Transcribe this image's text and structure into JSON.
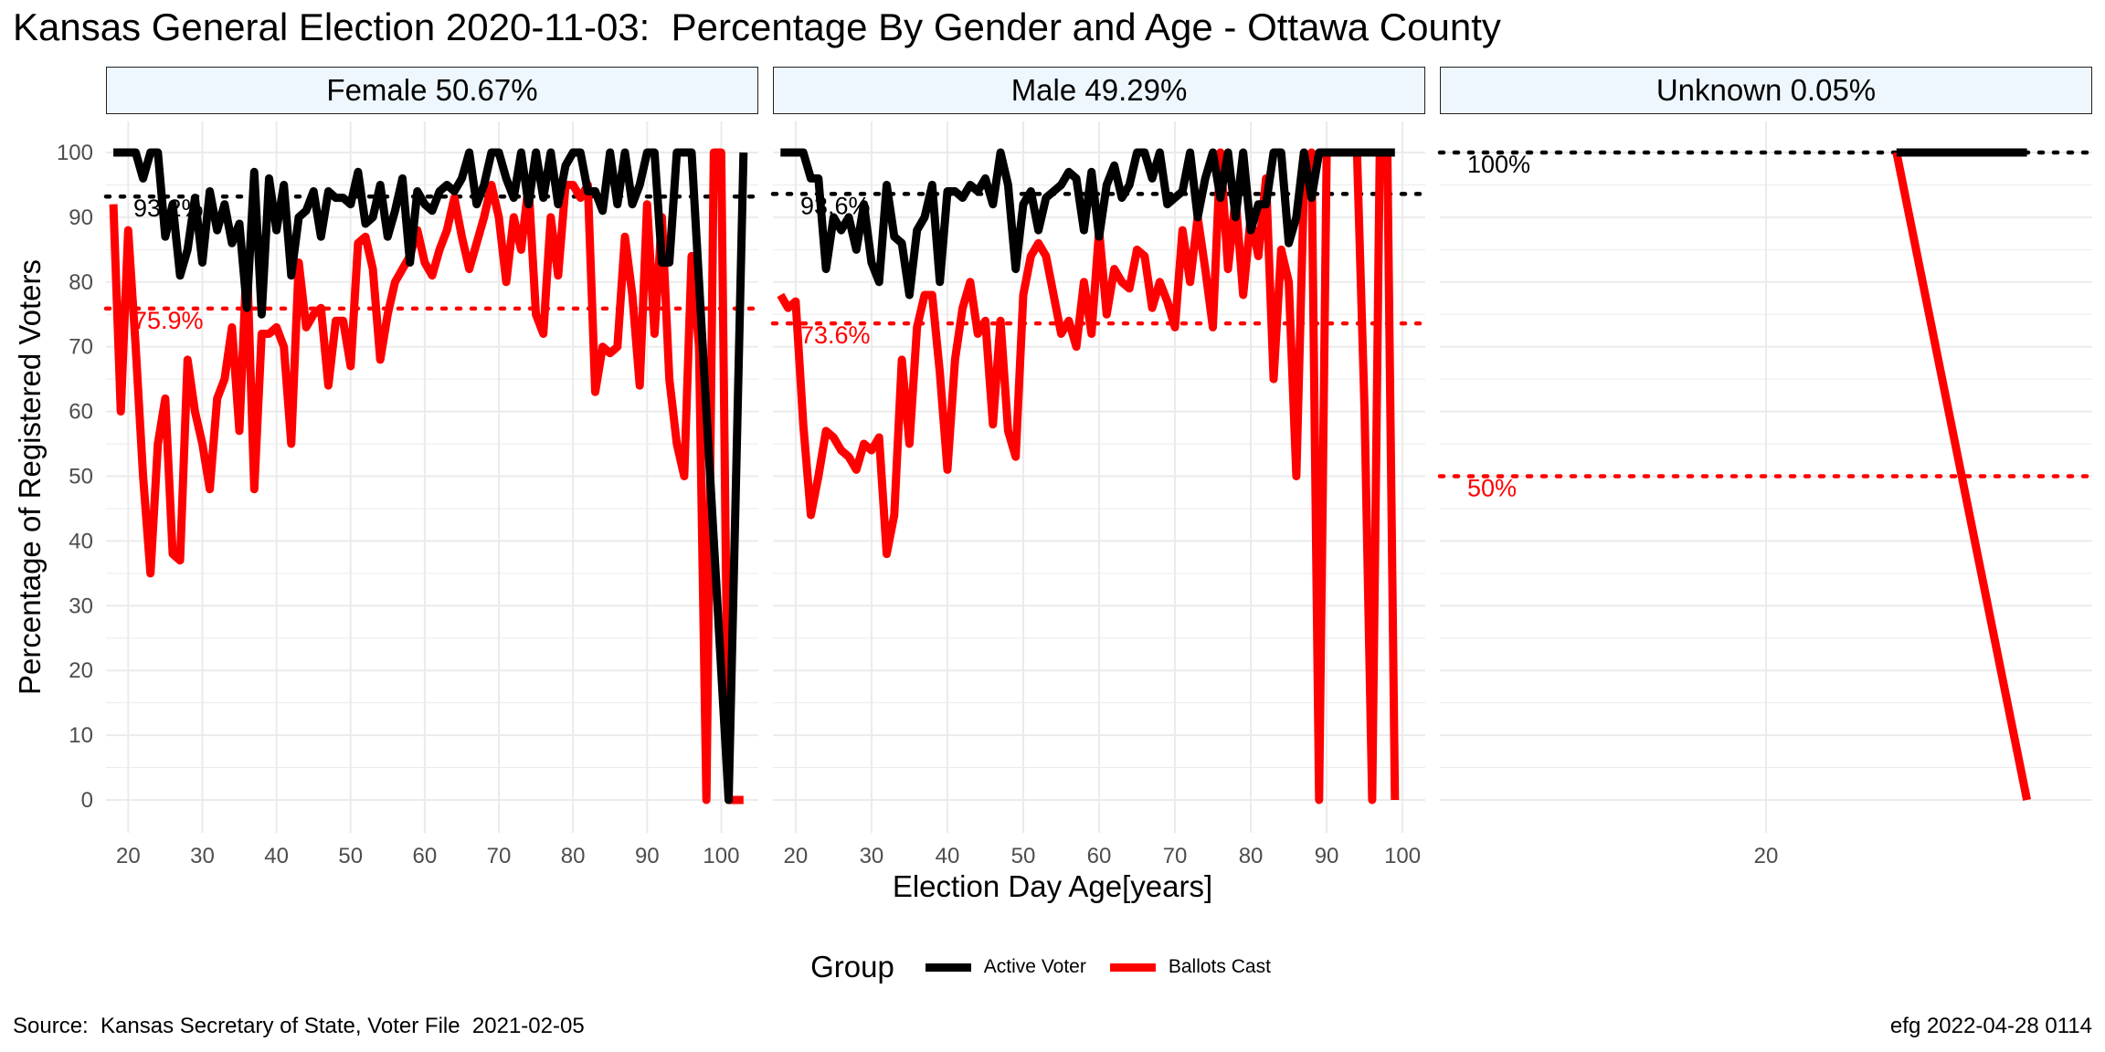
{
  "title": "Kansas General Election 2020-11-03:  Percentage By Gender and Age - Ottawa County",
  "source": "Source:  Kansas Secretary of State, Voter File  2021-02-05",
  "stamp": "efg 2022-04-28 0114",
  "colors": {
    "active": "#000000",
    "ballots": "#ff0000",
    "strip_bg": "#eef7fd",
    "grid": "#ebebeb"
  },
  "chart_data": {
    "type": "line",
    "xlabel": "Election Day Age[years]",
    "ylabel": "Percentage of Registered Voters",
    "ylim": [
      0,
      100
    ],
    "y_ticks": [
      0,
      10,
      20,
      30,
      40,
      50,
      60,
      70,
      80,
      90,
      100
    ],
    "legend": {
      "title": "Group",
      "position": "bottom",
      "entries": [
        "Active Voter",
        "Ballots Cast"
      ]
    },
    "panels": [
      {
        "strip": "Female 50.67%",
        "xlim": [
          17,
          105
        ],
        "x_ticks": [
          20,
          30,
          40,
          50,
          60,
          70,
          80,
          90,
          100
        ],
        "ref_lines": [
          {
            "series": "Active Voter",
            "value": 93.2,
            "label": "93.2%"
          },
          {
            "series": "Ballots Cast",
            "value": 75.9,
            "label": "75.9%"
          }
        ],
        "series": [
          {
            "name": "Active Voter",
            "x": [
              18,
              19,
              20,
              21,
              22,
              23,
              24,
              25,
              26,
              27,
              28,
              29,
              30,
              31,
              32,
              33,
              34,
              35,
              36,
              37,
              38,
              39,
              40,
              41,
              42,
              43,
              44,
              45,
              46,
              47,
              48,
              49,
              50,
              51,
              52,
              53,
              54,
              55,
              56,
              57,
              58,
              59,
              60,
              61,
              62,
              63,
              64,
              65,
              66,
              67,
              68,
              69,
              70,
              71,
              72,
              73,
              74,
              75,
              76,
              77,
              78,
              79,
              80,
              81,
              82,
              83,
              84,
              85,
              86,
              87,
              88,
              89,
              90,
              91,
              92,
              93,
              94,
              95,
              96,
              97,
              98,
              99,
              100,
              101,
              102,
              103
            ],
            "y": [
              100,
              100,
              100,
              100,
              96,
              100,
              100,
              87,
              92,
              81,
              85,
              93,
              83,
              94,
              88,
              92,
              86,
              89,
              76,
              97,
              75,
              96,
              88,
              95,
              81,
              90,
              91,
              94,
              87,
              94,
              93,
              93,
              92,
              97,
              89,
              90,
              95,
              87,
              91,
              96,
              83,
              94,
              92,
              91,
              94,
              95,
              94,
              96,
              100,
              92,
              95,
              100,
              100,
              96,
              93,
              100,
              92,
              100,
              93,
              100,
              92,
              98,
              100,
              100,
              94,
              94,
              91,
              100,
              92,
              100,
              92,
              95,
              100,
              100,
              83,
              83,
              100,
              100,
              100,
              80,
              60,
              40,
              20,
              0,
              50,
              100
            ]
          },
          {
            "name": "Ballots Cast",
            "x": [
              18,
              19,
              20,
              21,
              22,
              23,
              24,
              25,
              26,
              27,
              28,
              29,
              30,
              31,
              32,
              33,
              34,
              35,
              36,
              37,
              38,
              39,
              40,
              41,
              42,
              43,
              44,
              45,
              46,
              47,
              48,
              49,
              50,
              51,
              52,
              53,
              54,
              55,
              56,
              57,
              58,
              59,
              60,
              61,
              62,
              63,
              64,
              65,
              66,
              67,
              68,
              69,
              70,
              71,
              72,
              73,
              74,
              75,
              76,
              77,
              78,
              79,
              80,
              81,
              82,
              83,
              84,
              85,
              86,
              87,
              88,
              89,
              90,
              91,
              92,
              93,
              94,
              95,
              96,
              97,
              98,
              99,
              100,
              101,
              102,
              103
            ],
            "y": [
              92,
              60,
              88,
              70,
              50,
              35,
              55,
              62,
              38,
              37,
              68,
              60,
              55,
              48,
              62,
              65,
              73,
              57,
              84,
              48,
              72,
              72,
              73,
              70,
              55,
              83,
              73,
              75,
              76,
              64,
              74,
              74,
              67,
              86,
              87,
              82,
              68,
              75,
              80,
              82,
              84,
              88,
              83,
              81,
              85,
              88,
              93,
              87,
              82,
              86,
              90,
              95,
              90,
              80,
              90,
              85,
              95,
              75,
              72,
              90,
              81,
              95,
              95,
              93,
              95,
              63,
              70,
              69,
              70,
              87,
              78,
              64,
              92,
              72,
              90,
              65,
              55,
              50,
              84,
              70,
              0,
              100,
              100,
              0,
              0,
              0
            ]
          }
        ]
      },
      {
        "strip": "Male 49.29%",
        "xlim": [
          17,
          103
        ],
        "x_ticks": [
          20,
          30,
          40,
          50,
          60,
          70,
          80,
          90,
          100
        ],
        "ref_lines": [
          {
            "series": "Active Voter",
            "value": 93.6,
            "label": "93.6%"
          },
          {
            "series": "Ballots Cast",
            "value": 73.6,
            "label": "73.6%"
          }
        ],
        "series": [
          {
            "name": "Active Voter",
            "x": [
              18,
              19,
              20,
              21,
              22,
              23,
              24,
              25,
              26,
              27,
              28,
              29,
              30,
              31,
              32,
              33,
              34,
              35,
              36,
              37,
              38,
              39,
              40,
              41,
              42,
              43,
              44,
              45,
              46,
              47,
              48,
              49,
              50,
              51,
              52,
              53,
              54,
              55,
              56,
              57,
              58,
              59,
              60,
              61,
              62,
              63,
              64,
              65,
              66,
              67,
              68,
              69,
              70,
              71,
              72,
              73,
              74,
              75,
              76,
              77,
              78,
              79,
              80,
              81,
              82,
              83,
              84,
              85,
              86,
              87,
              88,
              89,
              90,
              91,
              92,
              93,
              94,
              95,
              96,
              97,
              98,
              99
            ],
            "y": [
              100,
              100,
              100,
              100,
              96,
              96,
              82,
              90,
              88,
              90,
              85,
              92,
              83,
              80,
              95,
              87,
              86,
              78,
              88,
              90,
              95,
              80,
              94,
              94,
              93,
              95,
              94,
              96,
              92,
              100,
              95,
              82,
              92,
              94,
              88,
              93,
              94,
              95,
              97,
              96,
              88,
              97,
              87,
              95,
              98,
              93,
              95,
              100,
              100,
              96,
              100,
              92,
              93,
              94,
              100,
              90,
              96,
              100,
              93,
              100,
              90,
              100,
              88,
              92,
              92,
              100,
              100,
              86,
              90,
              100,
              93,
              100,
              100,
              100,
              100,
              100,
              100,
              100,
              100,
              100,
              100,
              100
            ]
          },
          {
            "name": "Ballots Cast",
            "x": [
              18,
              19,
              20,
              21,
              22,
              23,
              24,
              25,
              26,
              27,
              28,
              29,
              30,
              31,
              32,
              33,
              34,
              35,
              36,
              37,
              38,
              39,
              40,
              41,
              42,
              43,
              44,
              45,
              46,
              47,
              48,
              49,
              50,
              51,
              52,
              53,
              54,
              55,
              56,
              57,
              58,
              59,
              60,
              61,
              62,
              63,
              64,
              65,
              66,
              67,
              68,
              69,
              70,
              71,
              72,
              73,
              74,
              75,
              76,
              77,
              78,
              79,
              80,
              81,
              82,
              83,
              84,
              85,
              86,
              87,
              88,
              89,
              90,
              91,
              92,
              93,
              94,
              95,
              96,
              97,
              98,
              99
            ],
            "y": [
              78,
              76,
              77,
              58,
              44,
              50,
              57,
              56,
              54,
              53,
              51,
              55,
              54,
              56,
              38,
              44,
              68,
              55,
              73,
              78,
              78,
              66,
              51,
              68,
              76,
              80,
              72,
              74,
              58,
              74,
              57,
              53,
              78,
              84,
              86,
              84,
              78,
              72,
              74,
              70,
              80,
              72,
              88,
              75,
              82,
              80,
              79,
              85,
              84,
              76,
              80,
              77,
              73,
              88,
              80,
              90,
              82,
              73,
              100,
              82,
              93,
              78,
              90,
              84,
              96,
              65,
              85,
              80,
              50,
              95,
              100,
              0,
              100,
              100,
              100,
              100,
              100,
              60,
              0,
              100,
              100,
              0
            ]
          }
        ]
      },
      {
        "strip": "Unknown 0.05%",
        "xlim": [
          15,
          25
        ],
        "x_ticks": [
          20
        ],
        "ref_lines": [
          {
            "series": "Active Voter",
            "value": 100,
            "label": "100%"
          },
          {
            "series": "Ballots Cast",
            "value": 50,
            "label": "50%"
          }
        ],
        "series": [
          {
            "name": "Active Voter",
            "x": [
              22,
              24
            ],
            "y": [
              100,
              100
            ]
          },
          {
            "name": "Ballots Cast",
            "x": [
              22,
              24
            ],
            "y": [
              100,
              0
            ]
          }
        ]
      }
    ]
  }
}
